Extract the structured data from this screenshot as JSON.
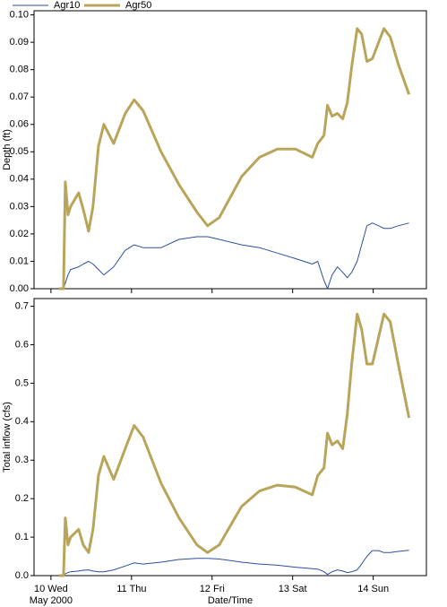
{
  "chart_data": [
    {
      "type": "line",
      "ylabel": "Depth (ft)",
      "x": [
        10.1,
        10.156,
        10.178,
        10.211,
        10.244,
        10.344,
        10.4,
        10.467,
        10.522,
        10.589,
        10.656,
        10.778,
        10.922,
        11.033,
        11.144,
        11.367,
        11.589,
        11.811,
        11.944,
        12.089,
        12.367,
        12.589,
        12.811,
        13.033,
        13.244,
        13.311,
        13.389,
        13.433,
        13.489,
        13.556,
        13.622,
        13.678,
        13.733,
        13.8,
        13.856,
        13.922,
        13.989,
        14.067,
        14.133,
        14.211,
        14.311,
        14.444
      ],
      "series": [
        {
          "name": "Agr10",
          "color": "#2b4fa0",
          "values": [
            0,
            0,
            0.002,
            0.005,
            0.007,
            0.008,
            0.009,
            0.01,
            0.009,
            0.007,
            0.005,
            0.008,
            0.014,
            0.016,
            0.015,
            0.015,
            0.018,
            0.019,
            0.019,
            0.018,
            0.016,
            0.015,
            0.013,
            0.011,
            0.009,
            0.01,
            0.003,
            0,
            0.005,
            0.008,
            0.006,
            0.004,
            0.006,
            0.01,
            0.016,
            0.023,
            0.024,
            0.023,
            0.022,
            0.022,
            0.023,
            0.024
          ]
        },
        {
          "name": "Agr50",
          "color": "#b8a55a",
          "values": [
            0,
            0,
            0.039,
            0.027,
            0.03,
            0.035,
            0.029,
            0.021,
            0.03,
            0.052,
            0.06,
            0.053,
            0.064,
            0.069,
            0.065,
            0.05,
            0.038,
            0.028,
            0.023,
            0.026,
            0.041,
            0.048,
            0.051,
            0.051,
            0.048,
            0.053,
            0.056,
            0.067,
            0.063,
            0.064,
            0.062,
            0.068,
            0.081,
            0.095,
            0.093,
            0.083,
            0.084,
            0.09,
            0.095,
            0.092,
            0.082,
            0.071
          ]
        }
      ],
      "xlim": [
        9.79,
        14.66
      ],
      "xticks": [
        10,
        11,
        12,
        13,
        14
      ],
      "ylim": [
        0,
        0.1015
      ],
      "yticks": [
        {
          "value": 0,
          "label": "0.00"
        },
        {
          "value": 0.01,
          "label": "0.01"
        },
        {
          "value": 0.02,
          "label": "0.02"
        },
        {
          "value": 0.03,
          "label": "0.03"
        },
        {
          "value": 0.04,
          "label": "0.04"
        },
        {
          "value": 0.05,
          "label": "0.05"
        },
        {
          "value": 0.06,
          "label": "0.06"
        },
        {
          "value": 0.07,
          "label": "0.07"
        },
        {
          "value": 0.08,
          "label": "0.08"
        },
        {
          "value": 0.09,
          "label": "0.09"
        },
        {
          "value": 0.1,
          "label": "0.10"
        }
      ]
    },
    {
      "type": "line",
      "ylabel": "Total inflow (cfs)",
      "xlabel": "Date/Time",
      "x_sublabel": "May 2000",
      "x": [
        10.1,
        10.156,
        10.178,
        10.211,
        10.244,
        10.344,
        10.4,
        10.467,
        10.522,
        10.589,
        10.656,
        10.778,
        10.922,
        11.033,
        11.144,
        11.367,
        11.589,
        11.811,
        11.944,
        12.089,
        12.367,
        12.589,
        12.811,
        13.033,
        13.244,
        13.311,
        13.389,
        13.433,
        13.489,
        13.556,
        13.622,
        13.678,
        13.733,
        13.8,
        13.856,
        13.922,
        13.989,
        14.067,
        14.133,
        14.211,
        14.311,
        14.444
      ],
      "series": [
        {
          "color": "#2b4fa0",
          "values": [
            0,
            0,
            0.005,
            0.008,
            0.01,
            0.012,
            0.014,
            0.015,
            0.012,
            0.01,
            0.01,
            0.015,
            0.025,
            0.033,
            0.03,
            0.035,
            0.042,
            0.045,
            0.045,
            0.043,
            0.035,
            0.03,
            0.027,
            0.022,
            0.018,
            0.017,
            0.01,
            0.003,
            0.01,
            0.015,
            0.012,
            0.008,
            0.01,
            0.015,
            0.03,
            0.05,
            0.065,
            0.065,
            0.06,
            0.06,
            0.063,
            0.066
          ]
        },
        {
          "color": "#b8a55a",
          "values": [
            0,
            0,
            0.15,
            0.08,
            0.1,
            0.12,
            0.08,
            0.06,
            0.12,
            0.26,
            0.31,
            0.25,
            0.33,
            0.39,
            0.36,
            0.24,
            0.15,
            0.08,
            0.06,
            0.08,
            0.18,
            0.22,
            0.235,
            0.23,
            0.21,
            0.26,
            0.28,
            0.37,
            0.34,
            0.35,
            0.33,
            0.42,
            0.55,
            0.68,
            0.64,
            0.55,
            0.55,
            0.62,
            0.68,
            0.66,
            0.55,
            0.41
          ]
        }
      ],
      "xlim": [
        9.79,
        14.66
      ],
      "xticks": [
        {
          "value": 10,
          "label": "10 Wed"
        },
        {
          "value": 11,
          "label": "11 Thu"
        },
        {
          "value": 12,
          "label": "12 Fri"
        },
        {
          "value": 13,
          "label": "13 Sat"
        },
        {
          "value": 14,
          "label": "14 Sun"
        }
      ],
      "ylim": [
        0,
        0.72
      ],
      "yticks": [
        {
          "value": 0,
          "label": "0.0"
        },
        {
          "value": 0.1,
          "label": "0.1"
        },
        {
          "value": 0.2,
          "label": "0.2"
        },
        {
          "value": 0.3,
          "label": "0.3"
        },
        {
          "value": 0.4,
          "label": "0.4"
        },
        {
          "value": 0.5,
          "label": "0.5"
        },
        {
          "value": 0.6,
          "label": "0.6"
        },
        {
          "value": 0.7,
          "label": "0.7"
        }
      ]
    }
  ]
}
